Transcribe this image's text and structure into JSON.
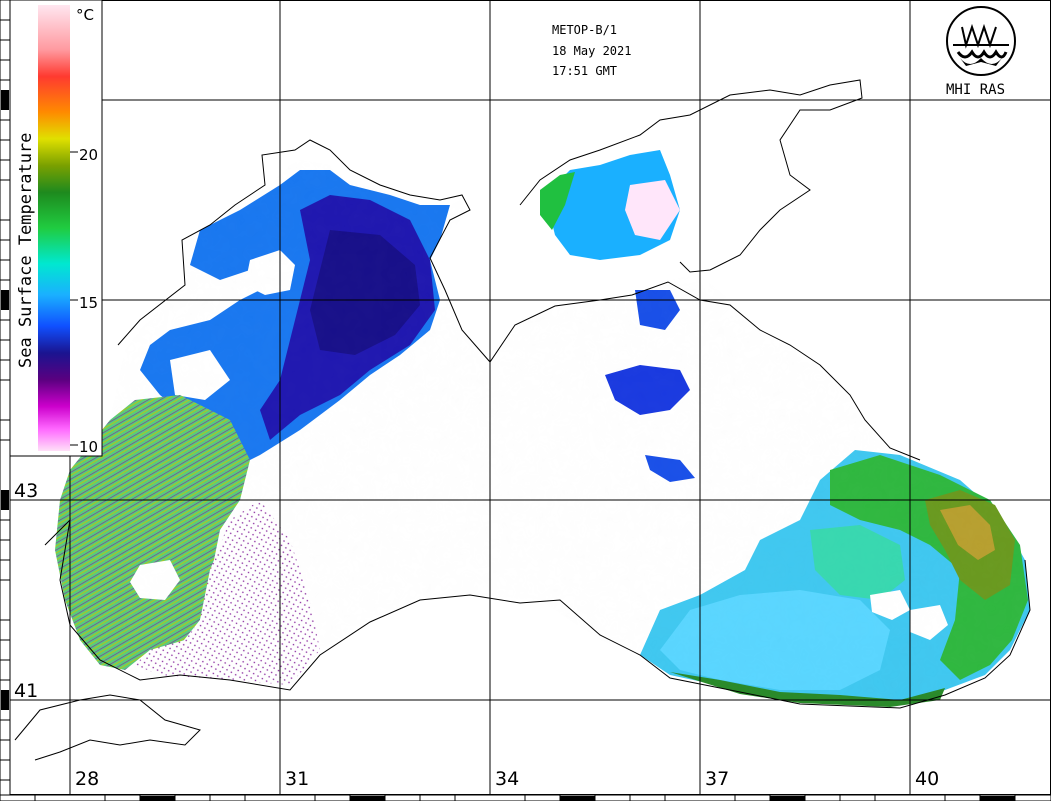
{
  "header": {
    "satellite": "METOP-B/1",
    "date": "18 May 2021",
    "time": "17:51 GMT"
  },
  "logo": {
    "text": "MHI RAS",
    "icon": "mhi-ras-emblem-icon"
  },
  "legend": {
    "title": "Sea Surface Temperature",
    "unit": "°C",
    "ticks": [
      "20",
      "15",
      "10"
    ],
    "range": [
      10,
      25
    ],
    "colors": {
      "warm_top": "#ffd6e8",
      "red": "#ff3030",
      "orange": "#ff8800",
      "yellow": "#e6e600",
      "green_dark": "#2a8a2a",
      "green": "#20c020",
      "cyan": "#00e8e8",
      "blue": "#1060ff",
      "navy": "#1a1490",
      "purple": "#8a0090",
      "magenta": "#ff40ff",
      "pink_bottom": "#ffd6f4"
    }
  },
  "graticule": {
    "latitudes": [
      "43",
      "41"
    ],
    "longitudes": [
      "28",
      "31",
      "34",
      "37",
      "40"
    ]
  }
}
